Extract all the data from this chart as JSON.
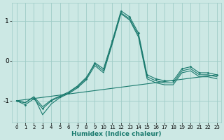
{
  "xlabel": "Humidex (Indice chaleur)",
  "ylabel": "",
  "bg_color": "#cce8e4",
  "grid_color": "#9fccc7",
  "line_color": "#1a7a6e",
  "xlim": [
    -0.5,
    23.5
  ],
  "ylim": [
    -1.55,
    1.45
  ],
  "yticks": [
    -1,
    0,
    1
  ],
  "xticks": [
    0,
    1,
    2,
    3,
    4,
    5,
    6,
    7,
    8,
    9,
    10,
    11,
    12,
    13,
    14,
    15,
    16,
    17,
    18,
    19,
    20,
    21,
    22,
    23
  ],
  "series": [
    {
      "x": [
        0,
        1,
        2,
        3,
        4,
        5,
        6,
        7,
        8,
        9,
        10,
        11,
        12,
        13,
        14,
        15,
        16,
        17,
        18,
        19,
        20,
        21,
        22,
        23
      ],
      "y": [
        -1.0,
        -1.1,
        -0.95,
        -1.2,
        -1.0,
        -0.9,
        -0.8,
        -0.65,
        -0.45,
        -0.05,
        -0.2,
        0.5,
        1.25,
        1.1,
        0.7,
        -0.35,
        -0.45,
        -0.5,
        -0.5,
        -0.2,
        -0.15,
        -0.3,
        -0.3,
        -0.35
      ],
      "marker": true
    },
    {
      "x": [
        0,
        1,
        2,
        3,
        4,
        5,
        6,
        7,
        8,
        9,
        10,
        11,
        12,
        13,
        14,
        15,
        16,
        17,
        18,
        19,
        20,
        21,
        22,
        23
      ],
      "y": [
        -1.0,
        -1.05,
        -0.9,
        -1.15,
        -0.98,
        -0.88,
        -0.78,
        -0.63,
        -0.42,
        -0.08,
        -0.25,
        0.45,
        1.2,
        1.05,
        0.65,
        -0.4,
        -0.5,
        -0.55,
        -0.55,
        -0.25,
        -0.2,
        -0.35,
        -0.35,
        -0.4
      ],
      "marker": false
    },
    {
      "x": [
        0,
        1,
        2,
        3,
        4,
        5,
        6,
        7,
        8,
        9,
        10,
        11,
        12,
        13,
        14,
        15,
        16,
        17,
        18,
        19,
        20,
        21,
        22,
        23
      ],
      "y": [
        -1.0,
        -1.05,
        -0.9,
        -1.35,
        -1.08,
        -0.92,
        -0.82,
        -0.68,
        -0.48,
        -0.12,
        -0.3,
        0.42,
        1.18,
        1.02,
        0.6,
        -0.45,
        -0.55,
        -0.6,
        -0.6,
        -0.3,
        -0.25,
        -0.4,
        -0.4,
        -0.45
      ],
      "marker": false
    },
    {
      "x": [
        0,
        23
      ],
      "y": [
        -1.0,
        -0.35
      ],
      "marker": false
    }
  ]
}
